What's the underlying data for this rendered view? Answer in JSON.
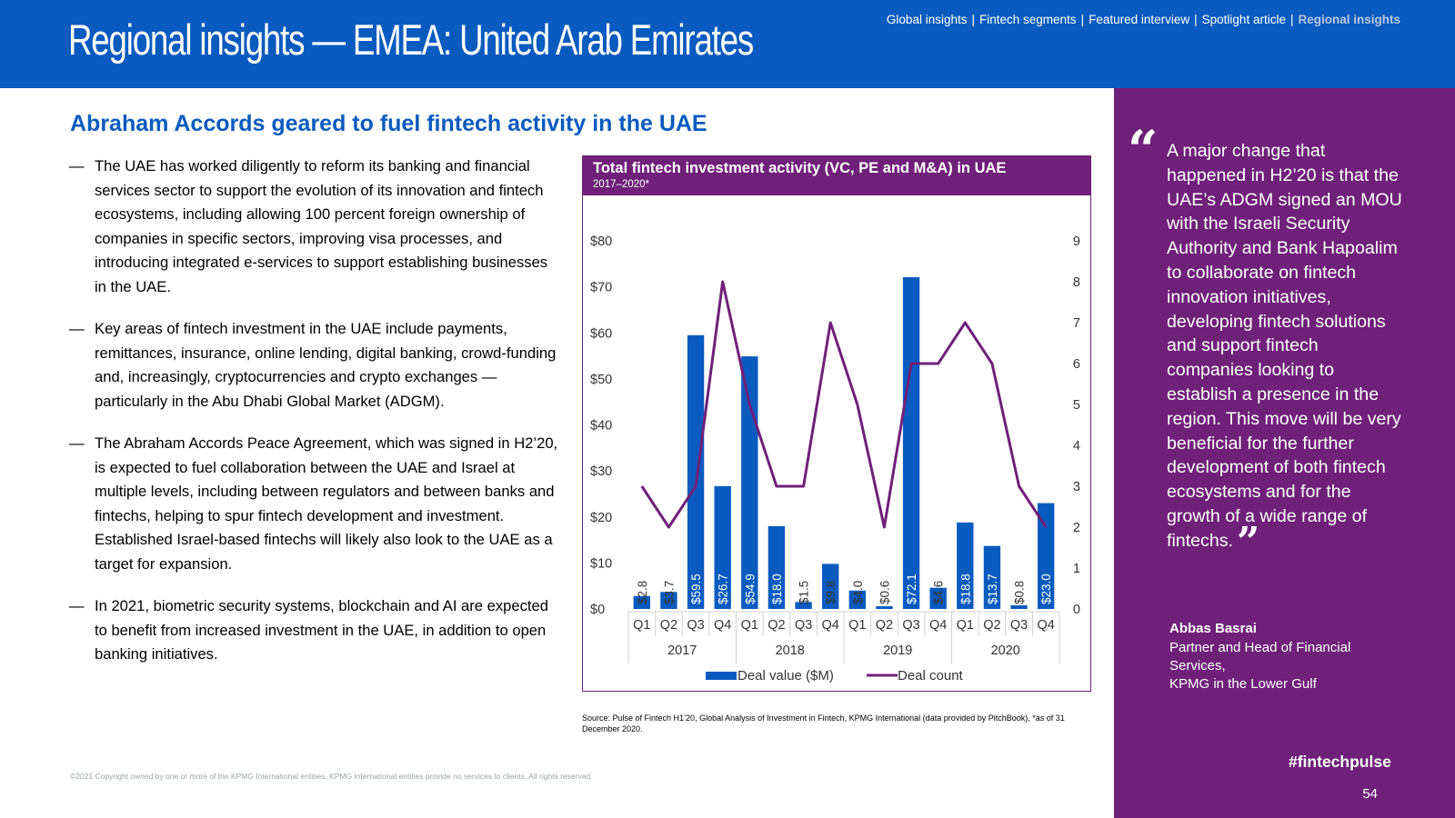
{
  "header": {
    "title": "Regional insights — EMEA: United Arab Emirates",
    "nav": [
      {
        "label": "Global insights",
        "active": false
      },
      {
        "label": "Fintech segments",
        "active": false
      },
      {
        "label": "Featured interview",
        "active": false
      },
      {
        "label": "Spotlight article",
        "active": false
      },
      {
        "label": "Regional insights",
        "active": true
      }
    ]
  },
  "main": {
    "subtitle": "Abraham Accords geared to fuel fintech activity in the UAE",
    "bullets": [
      "The UAE has worked diligently to reform its banking and financial services sector to support the evolution of its innovation and fintech ecosystems, including allowing 100 percent foreign ownership of companies in specific sectors, improving visa processes, and introducing integrated e-services to support establishing businesses in the UAE.",
      "Key areas of fintech investment in the UAE include payments, remittances, insurance, online lending, digital banking, crowd-funding and, increasingly, cryptocurrencies and crypto exchanges — particularly in the Abu Dhabi Global Market (ADGM).",
      "The Abraham Accords Peace Agreement, which was signed in H2’20, is expected to fuel collaboration between the UAE and Israel at multiple levels, including between regulators and between banks and fintechs, helping to spur fintech development and investment. Established Israel-based fintechs will likely also look to the UAE as a target for expansion.",
      "In 2021, biometric security systems, blockchain and AI are expected to benefit from increased investment in the UAE, in addition to open banking initiatives."
    ],
    "source": "Source: Pulse of Fintech H1’20, Global Analysis of Investment in Fintech, KPMG International (data provided by PitchBook), *as of 31 December 2020.",
    "copyright": "©2021 Copyright owned by one or more of the KPMG International entities. KPMG International entities provide no services to clients. All rights reserved."
  },
  "chart_data": {
    "type": "bar",
    "title": "Total fintech investment activity (VC, PE and M&A) in UAE",
    "subtitle": "2017–2020*",
    "categories": [
      "Q1",
      "Q2",
      "Q3",
      "Q4",
      "Q1",
      "Q2",
      "Q3",
      "Q4",
      "Q1",
      "Q2",
      "Q3",
      "Q4",
      "Q1",
      "Q2",
      "Q3",
      "Q4"
    ],
    "years": [
      "2017",
      "2018",
      "2019",
      "2020"
    ],
    "series": [
      {
        "name": "Deal value ($M)",
        "type": "bar",
        "axis": "left",
        "values": [
          2.8,
          3.7,
          59.5,
          26.7,
          54.9,
          18.0,
          1.5,
          9.8,
          4.0,
          0.6,
          72.1,
          4.6,
          18.8,
          13.7,
          0.8,
          23.0
        ],
        "labels": [
          "$2.8",
          "$3.7",
          "$59.5",
          "$26.7",
          "$54.9",
          "$18.0",
          "$1.5",
          "$9.8",
          "$4.0",
          "$0.6",
          "$72.1",
          "$4.6",
          "$18.8",
          "$13.7",
          "$0.8",
          "$23.0"
        ]
      },
      {
        "name": "Deal count",
        "type": "line",
        "axis": "right",
        "values": [
          3,
          2,
          3,
          8,
          5,
          3,
          3,
          7,
          5,
          2,
          6,
          6,
          7,
          6,
          3,
          2
        ]
      }
    ],
    "ylim_left": [
      0,
      80
    ],
    "yticks_left": [
      "$0",
      "$10",
      "$20",
      "$30",
      "$40",
      "$50",
      "$60",
      "$70",
      "$80"
    ],
    "ylim_right": [
      0,
      9
    ],
    "yticks_right": [
      "0",
      "1",
      "2",
      "3",
      "4",
      "5",
      "6",
      "7",
      "8",
      "9"
    ],
    "legend": "bottom",
    "grid": false,
    "colors": {
      "bar": "#0a5bbf",
      "line": "#6f2079"
    }
  },
  "sidebar": {
    "quote": "A major change that happened in H2’20 is that the UAE’s ADGM signed an MOU with the Israeli Security Authority and Bank Hapoalim to collaborate on fintech innovation initiatives, developing fintech solutions and support fintech companies looking to establish a presence in the region. This move will be very beneficial for the further development of both fintech ecosystems and for the growth of a wide range of fintechs.",
    "open_quote": "“",
    "close_quote": "”",
    "author": "Abbas Basrai",
    "author_role_lines": [
      "Partner and Head of Financial",
      "Services,",
      "KPMG in the Lower Gulf"
    ],
    "hashtag": "#fintechpulse",
    "page_number": "54"
  },
  "colors": {
    "brand_blue": "#0a5bbf",
    "brand_purple": "#6f2079"
  }
}
